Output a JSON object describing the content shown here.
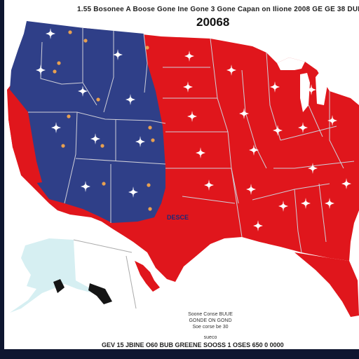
{
  "header": {
    "caption": "1.55 Bosonee A Boose Gone Ine Gone 3 Gone Capan on Ilione 2008 GE GE 38 DUE",
    "title": "20068"
  },
  "map": {
    "center_label": "DESCE",
    "colors": {
      "blue_region": "#2f3f88",
      "red_region": "#e0161c",
      "water": "#ffffff",
      "alaska": "#d6eff2",
      "border": "#cfcfd8",
      "star": "#ffffff",
      "marker": "#e8a050"
    },
    "icons": [
      "star-marker-icon",
      "dot-marker-icon"
    ]
  },
  "legend": {
    "lines": [
      "Soone Conse BUUE",
      "GONDE ON GOND",
      "Soe corse be 30"
    ],
    "footer": "sueco"
  },
  "footer": {
    "caption": "GEV 15 JBINE O60 BUB GREENE SOOSS 1 OSES 650 0 0000"
  }
}
